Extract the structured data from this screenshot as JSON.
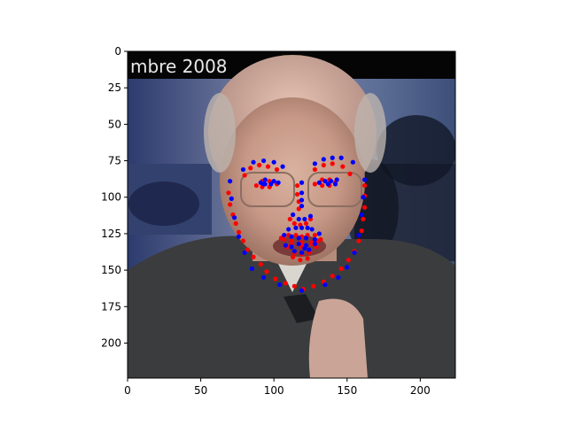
{
  "chart_data": {
    "type": "scatter",
    "image_text": "mbre 2008",
    "xlim": [
      0,
      224
    ],
    "ylim": [
      224,
      0
    ],
    "xticks": [
      0,
      50,
      100,
      150,
      200
    ],
    "yticks": [
      0,
      25,
      50,
      75,
      100,
      125,
      150,
      175,
      200
    ],
    "grid": false,
    "series": [
      {
        "color": "#ff0000",
        "points": [
          [
            69,
            97
          ],
          [
            70,
            105
          ],
          [
            72,
            112
          ],
          [
            74,
            118
          ],
          [
            76,
            124
          ],
          [
            79,
            130
          ],
          [
            82,
            136
          ],
          [
            86,
            141
          ],
          [
            91,
            146
          ],
          [
            95,
            151
          ],
          [
            101,
            156
          ],
          [
            108,
            159
          ],
          [
            114,
            161
          ],
          [
            120,
            163
          ],
          [
            127,
            161
          ],
          [
            134,
            158
          ],
          [
            140,
            154
          ],
          [
            146,
            149
          ],
          [
            151,
            143
          ],
          [
            155,
            137
          ],
          [
            158,
            130
          ],
          [
            160,
            123
          ],
          [
            161,
            115
          ],
          [
            162,
            107
          ],
          [
            162,
            99
          ],
          [
            162,
            92
          ],
          [
            80,
            85
          ],
          [
            84,
            80
          ],
          [
            90,
            78
          ],
          [
            96,
            79
          ],
          [
            102,
            81
          ],
          [
            128,
            81
          ],
          [
            134,
            78
          ],
          [
            140,
            77
          ],
          [
            147,
            79
          ],
          [
            152,
            84
          ],
          [
            116,
            92
          ],
          [
            116,
            98
          ],
          [
            117,
            103
          ],
          [
            117,
            108
          ],
          [
            111,
            115
          ],
          [
            114,
            118
          ],
          [
            118,
            119
          ],
          [
            122,
            118
          ],
          [
            125,
            115
          ],
          [
            88,
            92
          ],
          [
            92,
            89
          ],
          [
            97,
            89
          ],
          [
            102,
            91
          ],
          [
            97,
            93
          ],
          [
            92,
            93
          ],
          [
            128,
            91
          ],
          [
            133,
            88
          ],
          [
            138,
            88
          ],
          [
            142,
            90
          ],
          [
            138,
            92
          ],
          [
            133,
            92
          ],
          [
            105,
            128
          ],
          [
            110,
            126
          ],
          [
            115,
            126
          ],
          [
            119,
            127
          ],
          [
            123,
            126
          ],
          [
            128,
            126
          ],
          [
            132,
            129
          ],
          [
            129,
            134
          ],
          [
            124,
            138
          ],
          [
            119,
            139
          ],
          [
            114,
            138
          ],
          [
            109,
            134
          ],
          [
            107,
            129
          ],
          [
            112,
            130
          ],
          [
            119,
            131
          ],
          [
            126,
            131
          ],
          [
            130,
            130
          ],
          [
            126,
            132
          ],
          [
            119,
            134
          ],
          [
            112,
            133
          ],
          [
            113,
            141
          ],
          [
            118,
            143
          ],
          [
            123,
            142
          ]
        ]
      },
      {
        "color": "#0000ff",
        "points": [
          [
            70,
            89
          ],
          [
            71,
            101
          ],
          [
            73,
            114
          ],
          [
            76,
            127
          ],
          [
            80,
            138
          ],
          [
            85,
            149
          ],
          [
            93,
            155
          ],
          [
            104,
            160
          ],
          [
            119,
            164
          ],
          [
            135,
            160
          ],
          [
            144,
            155
          ],
          [
            150,
            148
          ],
          [
            155,
            138
          ],
          [
            158,
            126
          ],
          [
            160,
            112
          ],
          [
            161,
            100
          ],
          [
            162,
            88
          ],
          [
            79,
            81
          ],
          [
            86,
            76
          ],
          [
            93,
            75
          ],
          [
            100,
            76
          ],
          [
            106,
            79
          ],
          [
            128,
            77
          ],
          [
            134,
            74
          ],
          [
            140,
            73
          ],
          [
            146,
            73
          ],
          [
            154,
            76
          ],
          [
            119,
            90
          ],
          [
            119,
            97
          ],
          [
            119,
            102
          ],
          [
            119,
            106
          ],
          [
            113,
            112
          ],
          [
            117,
            115
          ],
          [
            121,
            115
          ],
          [
            125,
            113
          ],
          [
            91,
            90
          ],
          [
            94,
            88
          ],
          [
            100,
            89
          ],
          [
            103,
            90
          ],
          [
            98,
            91
          ],
          [
            93,
            91
          ],
          [
            131,
            90
          ],
          [
            135,
            89
          ],
          [
            139,
            89
          ],
          [
            143,
            88
          ],
          [
            142,
            91
          ],
          [
            137,
            91
          ],
          [
            110,
            122
          ],
          [
            115,
            121
          ],
          [
            119,
            121
          ],
          [
            123,
            121
          ],
          [
            126,
            122
          ],
          [
            131,
            125
          ],
          [
            128,
            132
          ],
          [
            124,
            136
          ],
          [
            119,
            138
          ],
          [
            114,
            137
          ],
          [
            108,
            133
          ],
          [
            112,
            127
          ],
          [
            117,
            128
          ],
          [
            122,
            128
          ],
          [
            128,
            129
          ],
          [
            122,
            133
          ],
          [
            117,
            132
          ],
          [
            112,
            134
          ],
          [
            94,
            91
          ],
          [
            121,
            135
          ],
          [
            107,
            126
          ]
        ]
      }
    ]
  }
}
